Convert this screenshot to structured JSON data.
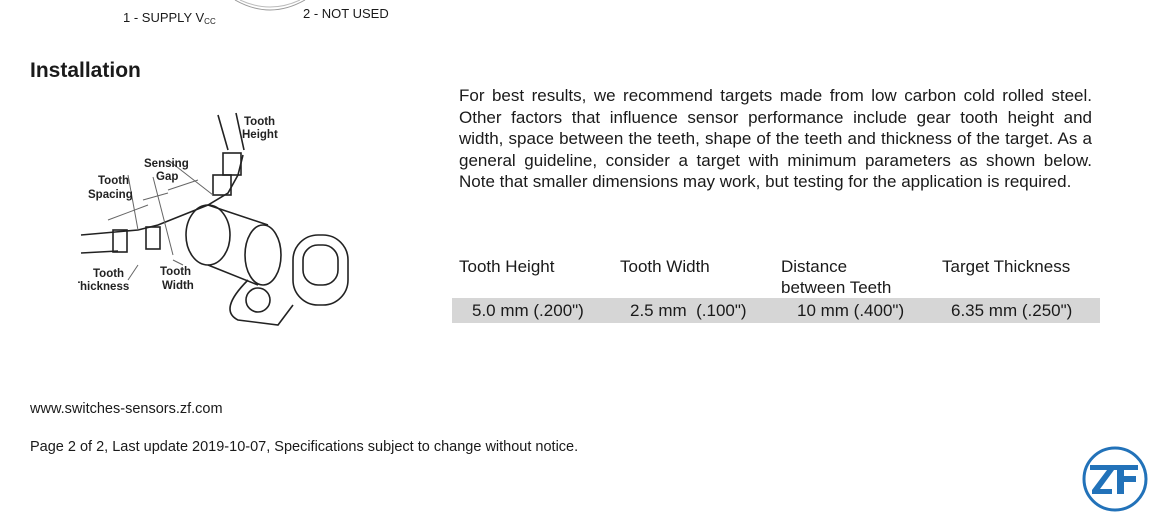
{
  "pinout": {
    "pin1": "1 - SUPPLY V",
    "pin1_sub": "CC",
    "pin2": "2 - NOT USED"
  },
  "section": {
    "title": "Installation"
  },
  "diagram": {
    "labels": {
      "tooth_height": [
        "Tooth",
        "Height"
      ],
      "sensing_gap": [
        "Sensing",
        "Gap"
      ],
      "tooth_spacing": [
        "Tooth",
        "Spacing"
      ],
      "tooth_thickness": [
        "Tooth",
        "Thickness"
      ],
      "tooth_width": [
        "Tooth",
        "Width"
      ]
    }
  },
  "body": {
    "paragraph": "For best results, we recommend targets made from low carbon cold rolled steel.  Other factors that influence sensor performance include gear tooth height and width, space between the teeth, shape of the teeth and thickness of the target.  As a general guideline, consider a target with minimum parameters as shown below.  Note that smaller dimensions may work, but testing for the application is required."
  },
  "table": {
    "headers": [
      "Tooth Height",
      "Tooth Width",
      "Distance",
      "between Teeth",
      "Target Thickness"
    ],
    "values": [
      "5.0 mm (.200\")",
      "2.5 mm  (.100\")",
      "10 mm (.400\")",
      "6.35 mm (.250\")"
    ],
    "row_color": "#d6d6d6"
  },
  "footer": {
    "url": "www.switches-sensors.zf.com",
    "page_note": "Page 2 of 2, Last update 2019-10-07, Specifications subject to change without notice."
  },
  "logo": {
    "text": "ZF",
    "color": "#2272b9"
  }
}
